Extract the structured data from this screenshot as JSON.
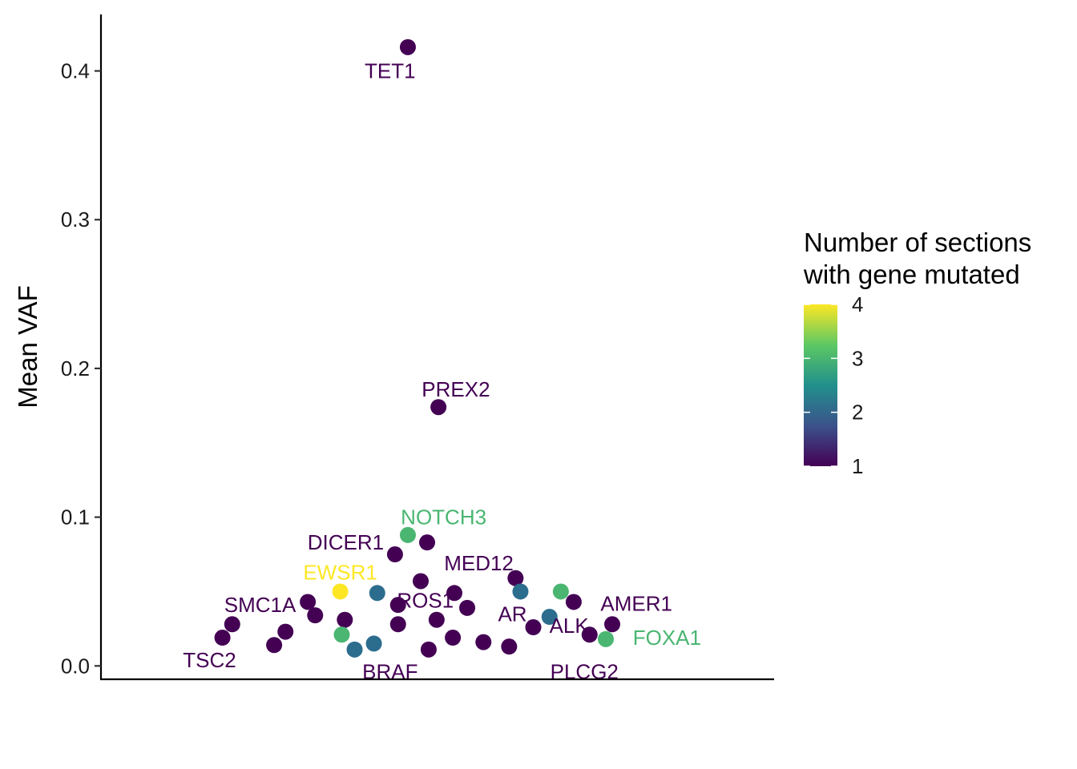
{
  "chart_data": {
    "type": "scatter",
    "ylabel": "Mean VAF",
    "xlabel": "",
    "xlim": [
      0.5,
      22.5
    ],
    "ylim": [
      -0.009,
      0.438
    ],
    "yticks": [
      0.0,
      0.1,
      0.2,
      0.3,
      0.4
    ],
    "ytick_labels": [
      "0.0",
      "0.1",
      "0.2",
      "0.3",
      "0.4"
    ],
    "x_ticks_shown": false,
    "grid": false,
    "legend": {
      "title_lines": [
        "Number of sections",
        "with gene mutated"
      ],
      "position": "right",
      "type": "colorbar",
      "range": [
        1,
        4
      ],
      "ticks": [
        1,
        2,
        3,
        4
      ],
      "tick_labels": [
        "1",
        "2",
        "3",
        "4"
      ],
      "colors": [
        "#440154",
        "#3b528b",
        "#21908c",
        "#5dc863",
        "#fde725"
      ]
    },
    "points": [
      {
        "x": 10.53,
        "y": 0.416,
        "n": 1,
        "color": "#440154"
      },
      {
        "x": 11.53,
        "y": 0.174,
        "n": 1,
        "color": "#440154"
      },
      {
        "x": 10.53,
        "y": 0.088,
        "n": 3,
        "color": "#4ab671"
      },
      {
        "x": 11.16,
        "y": 0.083,
        "n": 1,
        "color": "#440154"
      },
      {
        "x": 10.11,
        "y": 0.075,
        "n": 1,
        "color": "#440154"
      },
      {
        "x": 14.05,
        "y": 0.059,
        "n": 1,
        "color": "#440154"
      },
      {
        "x": 10.95,
        "y": 0.057,
        "n": 1,
        "color": "#440154"
      },
      {
        "x": 8.32,
        "y": 0.05,
        "n": 4,
        "color": "#fde725"
      },
      {
        "x": 9.53,
        "y": 0.049,
        "n": 2,
        "color": "#2c6d8e"
      },
      {
        "x": 14.21,
        "y": 0.05,
        "n": 2,
        "color": "#2c6d8e"
      },
      {
        "x": 15.53,
        "y": 0.05,
        "n": 3,
        "color": "#4ab671"
      },
      {
        "x": 12.05,
        "y": 0.049,
        "n": 1,
        "color": "#440154"
      },
      {
        "x": 15.95,
        "y": 0.043,
        "n": 1,
        "color": "#440154"
      },
      {
        "x": 7.26,
        "y": 0.043,
        "n": 1,
        "color": "#440154"
      },
      {
        "x": 10.21,
        "y": 0.041,
        "n": 1,
        "color": "#440154"
      },
      {
        "x": 12.47,
        "y": 0.039,
        "n": 1,
        "color": "#440154"
      },
      {
        "x": 7.5,
        "y": 0.034,
        "n": 1,
        "color": "#440154"
      },
      {
        "x": 15.16,
        "y": 0.033,
        "n": 2,
        "color": "#2c6d8e"
      },
      {
        "x": 8.47,
        "y": 0.031,
        "n": 1,
        "color": "#440154"
      },
      {
        "x": 11.47,
        "y": 0.031,
        "n": 1,
        "color": "#440154"
      },
      {
        "x": 4.79,
        "y": 0.028,
        "n": 1,
        "color": "#440154"
      },
      {
        "x": 10.21,
        "y": 0.028,
        "n": 1,
        "color": "#440154"
      },
      {
        "x": 17.21,
        "y": 0.028,
        "n": 1,
        "color": "#440154"
      },
      {
        "x": 14.63,
        "y": 0.026,
        "n": 1,
        "color": "#440154"
      },
      {
        "x": 6.53,
        "y": 0.023,
        "n": 1,
        "color": "#440154"
      },
      {
        "x": 8.37,
        "y": 0.021,
        "n": 3,
        "color": "#4ab671"
      },
      {
        "x": 16.47,
        "y": 0.021,
        "n": 1,
        "color": "#440154"
      },
      {
        "x": 4.47,
        "y": 0.019,
        "n": 1,
        "color": "#440154"
      },
      {
        "x": 12.0,
        "y": 0.019,
        "n": 1,
        "color": "#440154"
      },
      {
        "x": 17.0,
        "y": 0.018,
        "n": 3,
        "color": "#4ab671"
      },
      {
        "x": 13.0,
        "y": 0.016,
        "n": 1,
        "color": "#440154"
      },
      {
        "x": 9.42,
        "y": 0.015,
        "n": 2,
        "color": "#2c6d8e"
      },
      {
        "x": 6.16,
        "y": 0.014,
        "n": 1,
        "color": "#440154"
      },
      {
        "x": 13.84,
        "y": 0.013,
        "n": 1,
        "color": "#440154"
      },
      {
        "x": 8.79,
        "y": 0.011,
        "n": 2,
        "color": "#2c6d8e"
      },
      {
        "x": 11.21,
        "y": 0.011,
        "n": 1,
        "color": "#440154"
      }
    ],
    "labels": [
      {
        "text": "TET1",
        "x": 9.95,
        "y": 0.4,
        "color": "#440154"
      },
      {
        "text": "PREX2",
        "x": 12.1,
        "y": 0.186,
        "color": "#440154"
      },
      {
        "text": "NOTCH3",
        "x": 11.7,
        "y": 0.1,
        "color": "#4ab671"
      },
      {
        "text": "DICER1",
        "x": 8.5,
        "y": 0.083,
        "color": "#440154"
      },
      {
        "text": "MED12",
        "x": 12.85,
        "y": 0.069,
        "color": "#440154"
      },
      {
        "text": "EWSR1",
        "x": 8.32,
        "y": 0.063,
        "color": "#fde725"
      },
      {
        "text": "ROS1",
        "x": 11.1,
        "y": 0.044,
        "color": "#440154"
      },
      {
        "text": "SMC1A",
        "x": 5.7,
        "y": 0.041,
        "color": "#440154"
      },
      {
        "text": "AMER1",
        "x": 18.0,
        "y": 0.042,
        "color": "#440154"
      },
      {
        "text": "AR",
        "x": 13.95,
        "y": 0.035,
        "color": "#440154"
      },
      {
        "text": "ALK",
        "x": 15.8,
        "y": 0.027,
        "color": "#440154"
      },
      {
        "text": "FOXA1",
        "x": 19.0,
        "y": 0.019,
        "color": "#4ab671"
      },
      {
        "text": "TSC2",
        "x": 4.05,
        "y": 0.004,
        "color": "#440154"
      },
      {
        "text": "BRAF",
        "x": 9.95,
        "y": -0.004,
        "color": "#440154"
      },
      {
        "text": "PLCG2",
        "x": 16.3,
        "y": -0.004,
        "color": "#440154"
      }
    ]
  }
}
